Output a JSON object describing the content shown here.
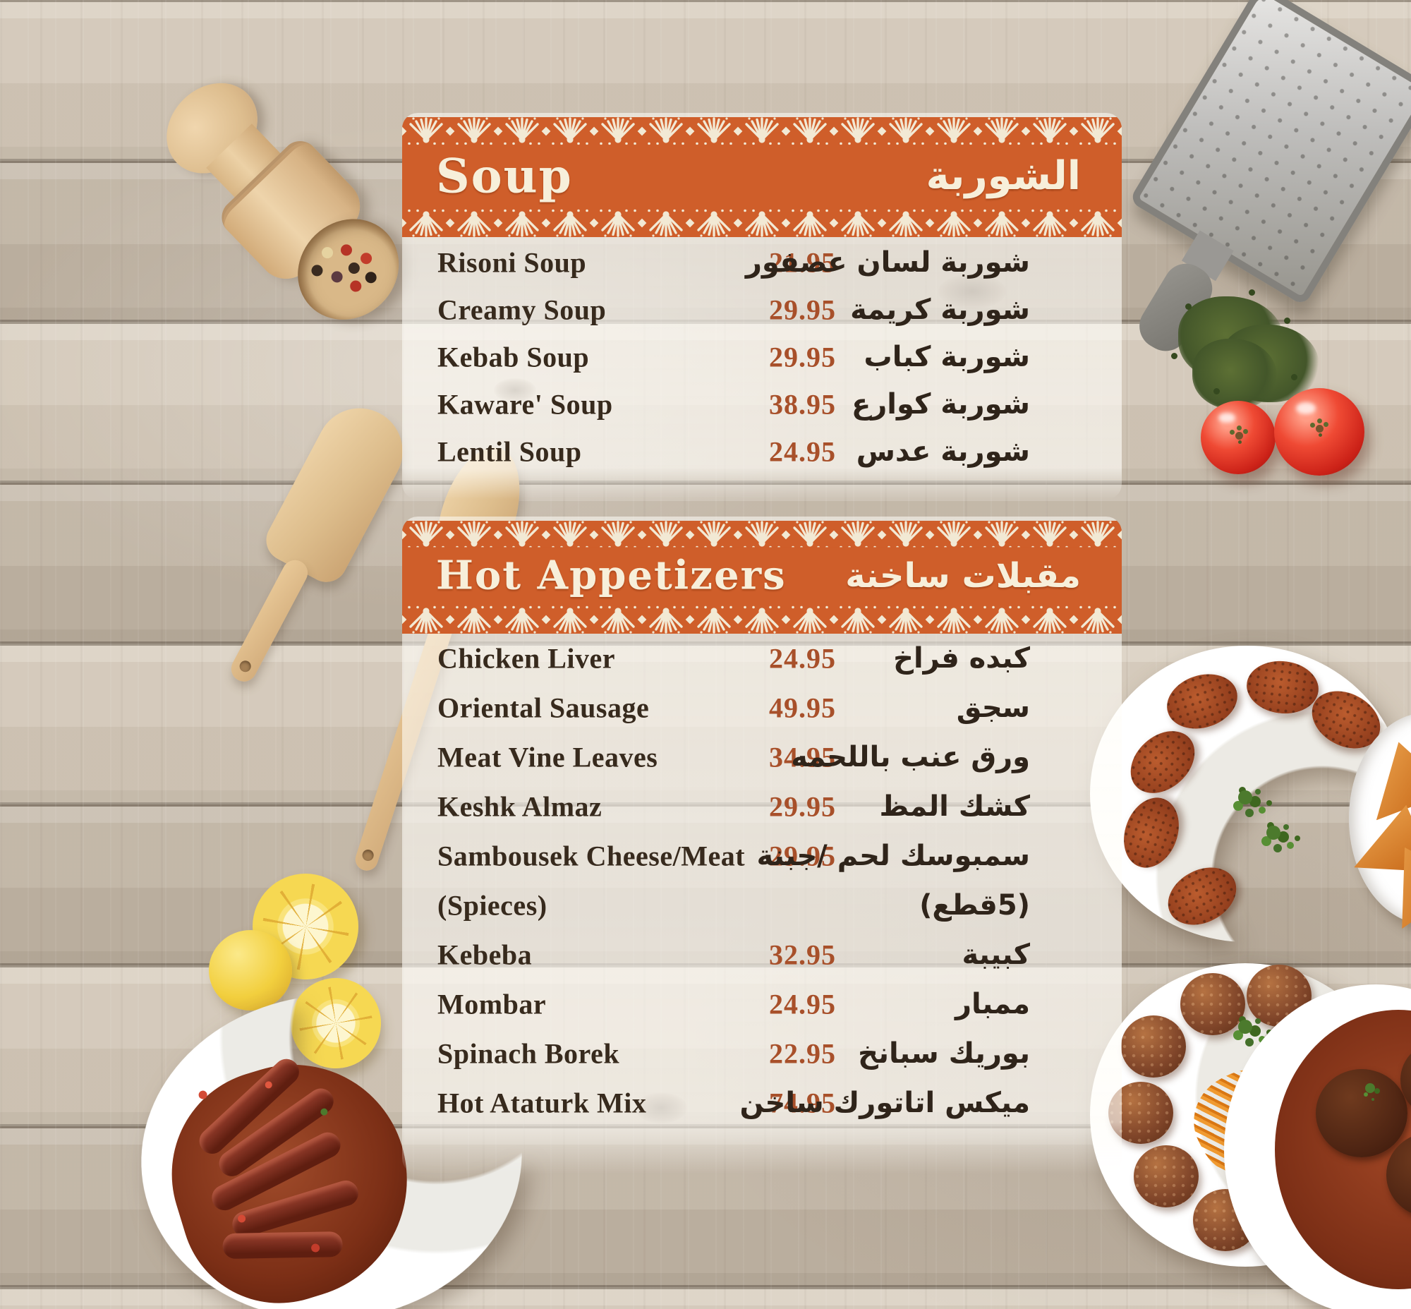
{
  "menu": {
    "sections": [
      {
        "id": "soup",
        "title_en": "Soup",
        "title_ar": "الشوربة",
        "items": [
          {
            "en": "Risoni Soup",
            "price": "21.95",
            "ar": "شوربة لسان عصفور"
          },
          {
            "en": "Creamy Soup",
            "price": "29.95",
            "ar": "شوربة كريمة"
          },
          {
            "en": "Kebab Soup",
            "price": "29.95",
            "ar": "شوربة كباب"
          },
          {
            "en": "Kaware' Soup",
            "price": "38.95",
            "ar": "شوربة كوارع"
          },
          {
            "en": "Lentil Soup",
            "price": "24.95",
            "ar": "شوربة عدس"
          }
        ]
      },
      {
        "id": "hot-appetizers",
        "title_en": "Hot Appetizers",
        "title_ar": "مقبلات ساخنة",
        "items": [
          {
            "en": "Chicken Liver",
            "price": "24.95",
            "ar": "كبده فراخ"
          },
          {
            "en": "Oriental Sausage",
            "price": "49.95",
            "ar": "سجق"
          },
          {
            "en": "Meat Vine Leaves",
            "price": "34.95",
            "ar": "ورق عنب باللحمه"
          },
          {
            "en": "Keshk Almaz",
            "price": "29.95",
            "ar": "كشك المظ"
          },
          {
            "en": "Sambousek Cheese/Meat",
            "price": "29.95",
            "ar": "سمبوسك لحم /جبنة",
            "en2": "(Spieces)",
            "ar2": "(5قطع)"
          },
          {
            "en": "Kebeba",
            "price": "32.95",
            "ar": "كبيبة"
          },
          {
            "en": "Mombar",
            "price": "24.95",
            "ar": "ممبار"
          },
          {
            "en": "Spinach Borek",
            "price": "22.95",
            "ar": "بوريك سبانخ"
          },
          {
            "en": "Hot Ataturk Mix",
            "price": "74.95",
            "ar": "ميكس اتاتورك ساخن"
          }
        ]
      }
    ],
    "colors": {
      "header_band": "#cf5e2a",
      "lace_cream": "#f2e9d4",
      "price_text": "#a8502a",
      "item_text": "#372a1d",
      "panel_overlay": "rgba(255,253,248,0.62)"
    },
    "decor_photos": [
      "spice-scoop-with-peppercorns",
      "wooden-spatulas",
      "lemon-slices",
      "sausage-dish",
      "metal-grater",
      "dried-herbs",
      "tomatoes",
      "kibbeh-plate",
      "samosa-plate",
      "meatball-plate",
      "stew-bowl"
    ]
  }
}
